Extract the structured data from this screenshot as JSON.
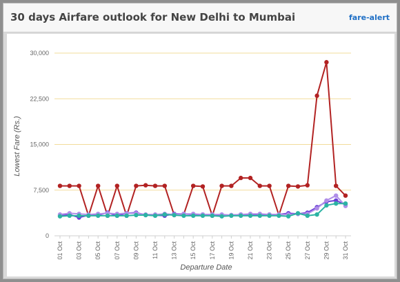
{
  "header": {
    "title": "30 days Airfare outlook for New Delhi to Mumbai",
    "link_label": "fare-alert"
  },
  "chart_data": {
    "type": "line",
    "title": "30 days Airfare outlook for New Delhi to Mumbai",
    "xlabel": "Departure Date",
    "ylabel": "Lowest Fare (Rs.)",
    "ylim": [
      0,
      30000
    ],
    "yticks": [
      0,
      7500,
      15000,
      22500,
      30000
    ],
    "ytick_labels": [
      "0",
      "7,500",
      "15,000",
      "22,500",
      "30,000"
    ],
    "grid": true,
    "x": [
      "01 Oct",
      "02 Oct",
      "03 Oct",
      "04 Oct",
      "05 Oct",
      "06 Oct",
      "07 Oct",
      "08 Oct",
      "09 Oct",
      "10 Oct",
      "11 Oct",
      "12 Oct",
      "13 Oct",
      "14 Oct",
      "15 Oct",
      "16 Oct",
      "17 Oct",
      "18 Oct",
      "19 Oct",
      "20 Oct",
      "21 Oct",
      "22 Oct",
      "23 Oct",
      "24 Oct",
      "25 Oct",
      "26 Oct",
      "27 Oct",
      "28 Oct",
      "29 Oct",
      "30 Oct",
      "31 Oct"
    ],
    "series": [
      {
        "color": "#b22222",
        "values": [
          8200,
          8200,
          8200,
          3300,
          8200,
          3300,
          8200,
          3300,
          8200,
          8300,
          8200,
          8200,
          3400,
          3500,
          8200,
          8100,
          3300,
          8200,
          8200,
          9500,
          9500,
          8200,
          8200,
          3400,
          8200,
          8100,
          8300,
          23000,
          28500,
          8200,
          6600
        ]
      },
      {
        "color": "#6a3fd6",
        "values": [
          3300,
          3500,
          3000,
          3400,
          3400,
          3800,
          3300,
          3700,
          3800,
          3400,
          3400,
          3300,
          3600,
          3600,
          3500,
          3500,
          3500,
          3400,
          3400,
          3500,
          3500,
          3500,
          3500,
          3500,
          3700,
          3600,
          3800,
          4700,
          5600,
          5800,
          5100
        ]
      },
      {
        "color": "#b08ee8",
        "values": [
          3500,
          3700,
          3600,
          3500,
          3600,
          3700,
          3600,
          3700,
          3700,
          3500,
          3500,
          3600,
          3500,
          3600,
          3600,
          3500,
          3500,
          3500,
          3400,
          3500,
          3600,
          3600,
          3500,
          3500,
          3500,
          3600,
          3600,
          4500,
          5800,
          6600,
          4900
        ]
      },
      {
        "color": "#2bb3a3",
        "values": [
          3200,
          3300,
          3300,
          3300,
          3300,
          3300,
          3300,
          3300,
          3400,
          3400,
          3300,
          3500,
          3400,
          3300,
          3300,
          3300,
          3300,
          3200,
          3300,
          3300,
          3300,
          3300,
          3300,
          3300,
          3200,
          3700,
          3300,
          3500,
          5000,
          5300,
          5300
        ]
      }
    ]
  }
}
